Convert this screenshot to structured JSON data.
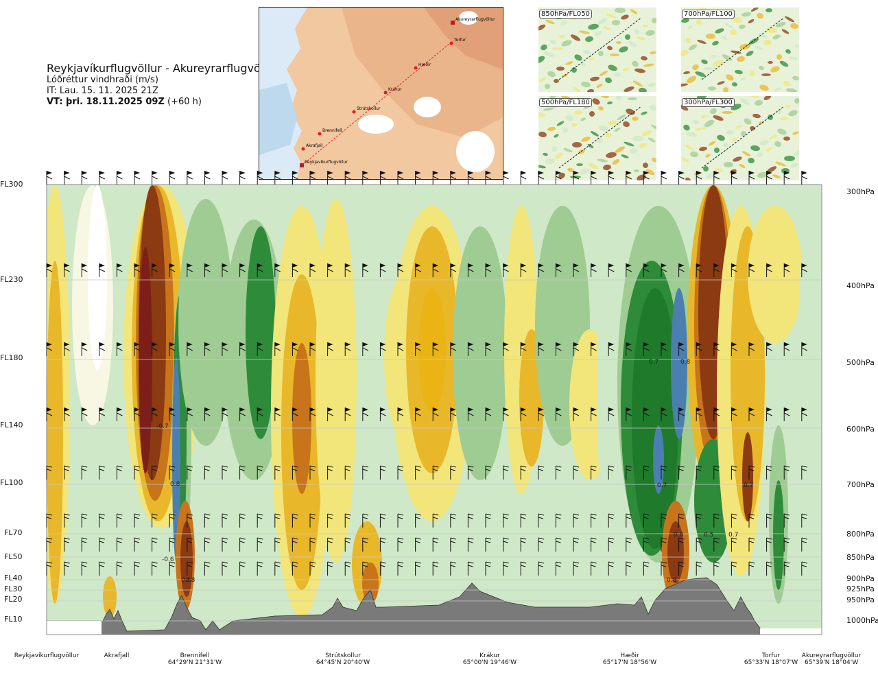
{
  "header": {
    "title": "Reykjavíkurflugvöllur - Akureyrarflugvöllur",
    "subtitle": "Lóðréttur vindhraði (m/s)",
    "it": "IT: Lau. 15. 11. 2025 21Z",
    "vt_label": "VT: þri. 18.11.2025 09Z",
    "vt_offset": "(+60 h)"
  },
  "map": {
    "route_points": [
      "Akureyrarflugvöllur",
      "Torfur",
      "Hæðir",
      "Krákur",
      "Strútskollur",
      "Brennifell",
      "Akrafjall",
      "Reykjavíkurflugvöllur"
    ],
    "route_color": "#e8191c"
  },
  "mini_maps": [
    {
      "label": "850hPa/FL050"
    },
    {
      "label": "700hPa/FL100"
    },
    {
      "label": "500hPa/FL180"
    },
    {
      "label": "300hPa/FL300"
    }
  ],
  "chart_data": {
    "type": "heatmap",
    "variable": "Lóðréttur vindhraði (m/s)",
    "left_axis_labels": [
      "FL300",
      "FL230",
      "FL180",
      "FL140",
      "FL100",
      "FL70",
      "FL50",
      "FL40",
      "FL30",
      "FL20",
      "FL10"
    ],
    "right_axis_labels": [
      "300hPa",
      "400hPa",
      "500hPa",
      "600hPa",
      "700hPa",
      "800hPa",
      "850hPa",
      "900hPa",
      "925hPa",
      "950hPa",
      "1000hPa"
    ],
    "contour_labels": [
      "-0.7",
      "-0.6",
      "0.8",
      "0.6",
      "0.8",
      "0.7",
      "0.8",
      "0.7",
      "0.8",
      "0.5",
      "0.7",
      "0.8",
      "0.7"
    ],
    "locations": [
      {
        "name": "Reykjavíkurflugvöllur",
        "coord": ""
      },
      {
        "name": "Akrafjall",
        "coord": ""
      },
      {
        "name": "Brennifell",
        "coord": "64°29'N 21°31'W"
      },
      {
        "name": "Strútskollur",
        "coord": "64°45'N 20°40'W"
      },
      {
        "name": "Krákur",
        "coord": "65°00'N 19°46'W"
      },
      {
        "name": "Hæðir",
        "coord": "65°17'N 18°56'W"
      },
      {
        "name": "Torfur",
        "coord": "65°33'N 18°07'W"
      },
      {
        "name": "Akureyrarflugvöllur",
        "coord": "65°39'N 18°04'W"
      }
    ],
    "colors": {
      "strong_down": "#8b3a12",
      "down_2": "#c8741a",
      "down_1": "#e8b82a",
      "weak_down": "#f2e57a",
      "neutral": "#f7f7e4",
      "weak_up": "#cfe8c7",
      "up_1": "#9fcc93",
      "up_2": "#2e8b3a",
      "strong_up": "#4a7fb0",
      "terrain": "#7a7a7a"
    }
  }
}
